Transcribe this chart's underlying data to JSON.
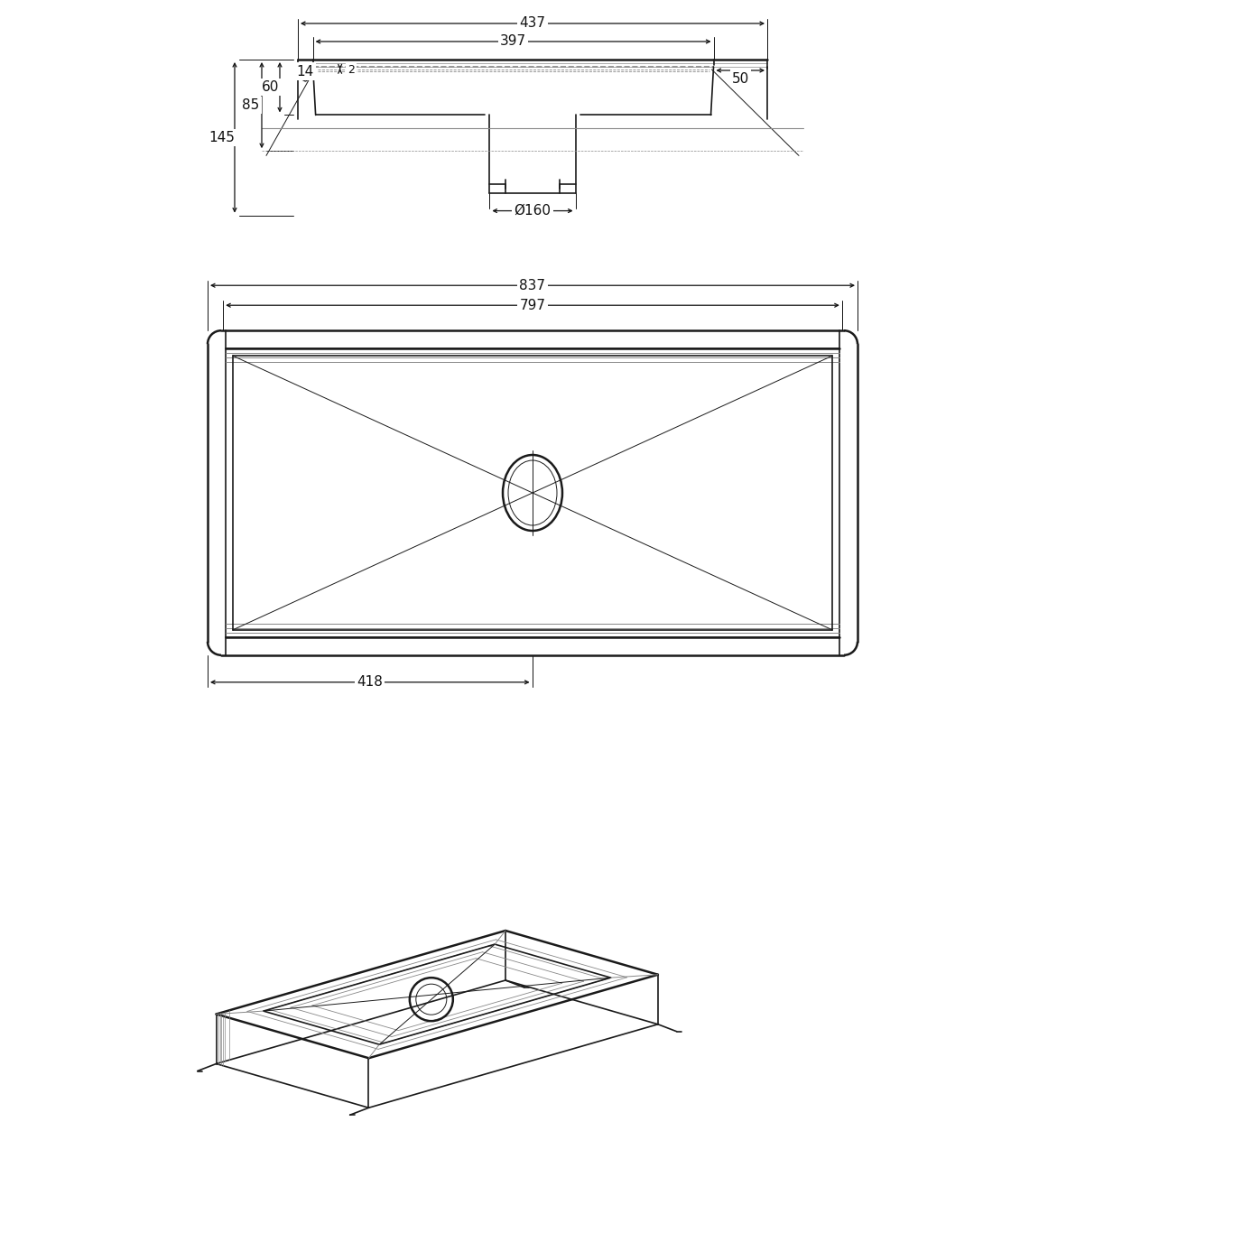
{
  "bg_color": "#ffffff",
  "lc": "#1a1a1a",
  "lw": 1.2,
  "lw_t": 0.7,
  "lw_T": 1.8,
  "dc": "#111111",
  "fs": 11,
  "gray": "#888888"
}
